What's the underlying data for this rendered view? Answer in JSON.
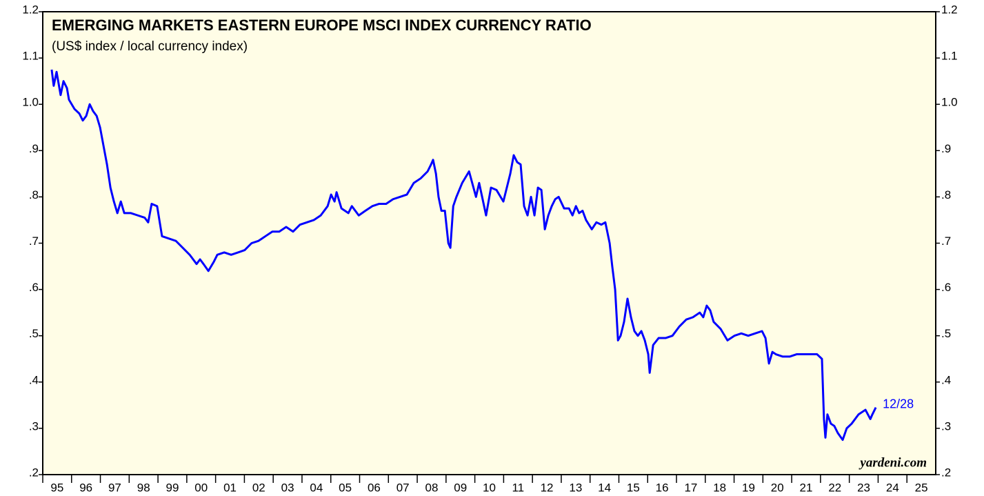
{
  "chart_data": {
    "type": "line",
    "title": "EMERGING MARKETS EASTERN EUROPE MSCI INDEX CURRENCY RATIO",
    "subtitle": "(US$ index / local currency index)",
    "annotation": "12/28",
    "credit": "yardeni.com",
    "color": "#0000ff",
    "xlim": [
      1995,
      2026
    ],
    "ylim": [
      0.2,
      1.2
    ],
    "yticks": [
      {
        "value": 0.2,
        "label": ".2"
      },
      {
        "value": 0.3,
        "label": ".3"
      },
      {
        "value": 0.4,
        "label": ".4"
      },
      {
        "value": 0.5,
        "label": ".5"
      },
      {
        "value": 0.6,
        "label": ".6"
      },
      {
        "value": 0.7,
        "label": ".7"
      },
      {
        "value": 0.8,
        "label": ".8"
      },
      {
        "value": 0.9,
        "label": ".9"
      },
      {
        "value": 1,
        "label": "1.0"
      },
      1.1,
      1.2
    ],
    "xticks": [
      {
        "value": 1995,
        "label": "95"
      },
      {
        "value": 1996,
        "label": "96"
      },
      {
        "value": 1997,
        "label": "97"
      },
      {
        "value": 1998,
        "label": "98"
      },
      {
        "value": 1999,
        "label": "99"
      },
      {
        "value": 2000,
        "label": "00"
      },
      {
        "value": 2001,
        "label": "01"
      },
      {
        "value": 2002,
        "label": "02"
      },
      {
        "value": 2003,
        "label": "03"
      },
      {
        "value": 2004,
        "label": "04"
      },
      {
        "value": 2005,
        "label": "05"
      },
      {
        "value": 2006,
        "label": "06"
      },
      {
        "value": 2007,
        "label": "07"
      },
      {
        "value": 2008,
        "label": "08"
      },
      {
        "value": 2009,
        "label": "09"
      },
      {
        "value": 2010,
        "label": "10"
      },
      {
        "value": 2011,
        "label": "11"
      },
      {
        "value": 2012,
        "label": "12"
      },
      {
        "value": 2013,
        "label": "13"
      },
      {
        "value": 2014,
        "label": "14"
      },
      {
        "value": 2015,
        "label": "15"
      },
      {
        "value": 2016,
        "label": "16"
      },
      {
        "value": 2017,
        "label": "17"
      },
      {
        "value": 2018,
        "label": "18"
      },
      {
        "value": 2019,
        "label": "19"
      },
      {
        "value": 2020,
        "label": "20"
      },
      {
        "value": 2021,
        "label": "21"
      },
      {
        "value": 2022,
        "label": "22"
      },
      {
        "value": 2023,
        "label": "23"
      },
      {
        "value": 2024,
        "label": "24"
      },
      {
        "value": 2025,
        "label": "25"
      }
    ],
    "x": [
      1995.31,
      1995.38,
      1995.48,
      1995.62,
      1995.72,
      1995.84,
      1995.91,
      1996.1,
      1996.27,
      1996.39,
      1996.51,
      1996.63,
      1996.75,
      1996.87,
      1996.99,
      1997.11,
      1997.23,
      1997.35,
      1997.47,
      1997.59,
      1997.71,
      1997.83,
      1998.06,
      1998.3,
      1998.54,
      1998.66,
      1998.78,
      1998.97,
      1999.14,
      1999.38,
      1999.62,
      1999.86,
      2000.1,
      2000.34,
      2000.46,
      2000.58,
      2000.75,
      2000.94,
      2001.06,
      2001.3,
      2001.54,
      2001.78,
      2002.01,
      2002.25,
      2002.49,
      2002.73,
      2002.97,
      2003.21,
      2003.45,
      2003.69,
      2003.93,
      2004.17,
      2004.41,
      2004.65,
      2004.89,
      2005.01,
      2005.13,
      2005.2,
      2005.37,
      2005.61,
      2005.73,
      2005.97,
      2006.2,
      2006.44,
      2006.68,
      2006.92,
      2007.16,
      2007.4,
      2007.64,
      2007.88,
      2008.12,
      2008.36,
      2008.48,
      2008.55,
      2008.65,
      2008.74,
      2008.84,
      2008.96,
      2009.08,
      2009.15,
      2009.25,
      2009.36,
      2009.56,
      2009.8,
      2010.04,
      2010.15,
      2010.27,
      2010.39,
      2010.56,
      2010.75,
      2010.99,
      2011.23,
      2011.35,
      2011.47,
      2011.59,
      2011.71,
      2011.83,
      2011.95,
      2012.07,
      2012.19,
      2012.31,
      2012.43,
      2012.55,
      2012.67,
      2012.79,
      2012.91,
      2013.1,
      2013.27,
      2013.39,
      2013.51,
      2013.62,
      2013.74,
      2013.86,
      2014.06,
      2014.22,
      2014.39,
      2014.53,
      2014.68,
      2014.77,
      2014.87,
      2014.97,
      2015.06,
      2015.18,
      2015.3,
      2015.42,
      2015.54,
      2015.66,
      2015.78,
      2015.9,
      2016.02,
      2016.07,
      2016.19,
      2016.38,
      2016.62,
      2016.86,
      2017.1,
      2017.34,
      2017.57,
      2017.81,
      2017.93,
      2018.05,
      2018.17,
      2018.29,
      2018.53,
      2018.77,
      2019.01,
      2019.25,
      2019.49,
      2019.73,
      2019.97,
      2020.09,
      2020.21,
      2020.33,
      2020.45,
      2020.69,
      2020.93,
      2021.17,
      2021.4,
      2021.64,
      2021.88,
      2022.05,
      2022.12,
      2022.17,
      2022.24,
      2022.36,
      2022.48,
      2022.6,
      2022.77,
      2022.91,
      2023.08,
      2023.32,
      2023.56,
      2023.73,
      2023.8,
      2023.92
    ],
    "values": [
      1.075,
      1.04,
      1.07,
      1.02,
      1.05,
      1.035,
      1.01,
      0.99,
      0.98,
      0.965,
      0.975,
      1.0,
      0.985,
      0.975,
      0.95,
      0.91,
      0.87,
      0.82,
      0.79,
      0.765,
      0.79,
      0.765,
      0.765,
      0.76,
      0.755,
      0.745,
      0.785,
      0.78,
      0.715,
      0.71,
      0.705,
      0.69,
      0.675,
      0.655,
      0.665,
      0.655,
      0.64,
      0.66,
      0.675,
      0.68,
      0.675,
      0.68,
      0.685,
      0.7,
      0.705,
      0.715,
      0.725,
      0.725,
      0.735,
      0.725,
      0.74,
      0.745,
      0.75,
      0.76,
      0.78,
      0.805,
      0.79,
      0.81,
      0.775,
      0.765,
      0.78,
      0.76,
      0.77,
      0.78,
      0.785,
      0.785,
      0.795,
      0.8,
      0.805,
      0.83,
      0.84,
      0.855,
      0.87,
      0.88,
      0.85,
      0.8,
      0.77,
      0.77,
      0.7,
      0.69,
      0.78,
      0.8,
      0.83,
      0.855,
      0.8,
      0.83,
      0.795,
      0.76,
      0.82,
      0.815,
      0.79,
      0.85,
      0.89,
      0.875,
      0.87,
      0.78,
      0.76,
      0.8,
      0.76,
      0.82,
      0.815,
      0.73,
      0.76,
      0.78,
      0.795,
      0.8,
      0.775,
      0.775,
      0.76,
      0.78,
      0.765,
      0.77,
      0.75,
      0.73,
      0.745,
      0.74,
      0.745,
      0.7,
      0.65,
      0.6,
      0.49,
      0.5,
      0.53,
      0.58,
      0.54,
      0.51,
      0.5,
      0.51,
      0.49,
      0.46,
      0.42,
      0.48,
      0.495,
      0.495,
      0.5,
      0.52,
      0.535,
      0.54,
      0.55,
      0.54,
      0.565,
      0.555,
      0.53,
      0.515,
      0.49,
      0.5,
      0.505,
      0.5,
      0.505,
      0.51,
      0.495,
      0.44,
      0.465,
      0.46,
      0.455,
      0.455,
      0.46,
      0.46,
      0.46,
      0.46,
      0.45,
      0.32,
      0.28,
      0.33,
      0.31,
      0.305,
      0.29,
      0.275,
      0.3,
      0.31,
      0.33,
      0.34,
      0.32,
      0.33,
      0.345
    ]
  }
}
